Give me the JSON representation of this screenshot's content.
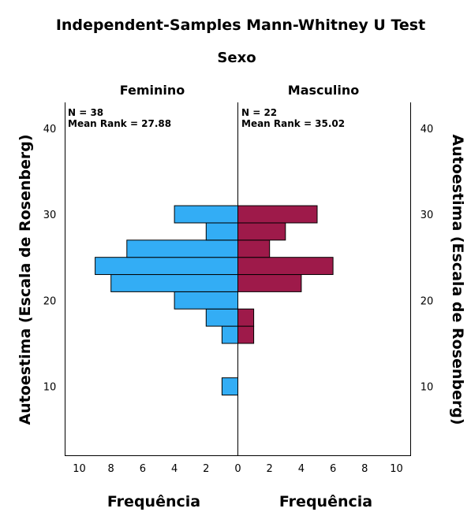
{
  "chart_data": {
    "type": "bar",
    "title": "Independent-Samples Mann-Whitney U Test",
    "subtitle": "Sexo",
    "ylabel": "Autoestima (Escala de Rosenberg)",
    "xlabel": "Frequência",
    "ylim": [
      2,
      43
    ],
    "xlim": [
      0,
      10
    ],
    "bin_width": 2,
    "y_ticks": [
      10,
      20,
      30,
      40
    ],
    "x_ticks": [
      10,
      8,
      6,
      4,
      2,
      0,
      2,
      4,
      6,
      8,
      10
    ],
    "groups": [
      {
        "name": "Feminino",
        "n_label": "N = 38",
        "mean_rank_label": "Mean Rank = 27.88",
        "color": "#33adf5",
        "bins": [
          {
            "y_start": 9,
            "count": 1
          },
          {
            "y_start": 15,
            "count": 1
          },
          {
            "y_start": 17,
            "count": 2
          },
          {
            "y_start": 19,
            "count": 4
          },
          {
            "y_start": 21,
            "count": 8
          },
          {
            "y_start": 23,
            "count": 9
          },
          {
            "y_start": 25,
            "count": 7
          },
          {
            "y_start": 27,
            "count": 2
          },
          {
            "y_start": 29,
            "count": 4
          }
        ]
      },
      {
        "name": "Masculino",
        "n_label": "N = 22",
        "mean_rank_label": "Mean Rank = 35.02",
        "color": "#9e1a4a",
        "bins": [
          {
            "y_start": 15,
            "count": 1
          },
          {
            "y_start": 17,
            "count": 1
          },
          {
            "y_start": 21,
            "count": 4
          },
          {
            "y_start": 23,
            "count": 6
          },
          {
            "y_start": 25,
            "count": 2
          },
          {
            "y_start": 27,
            "count": 3
          },
          {
            "y_start": 29,
            "count": 5
          }
        ]
      }
    ]
  }
}
